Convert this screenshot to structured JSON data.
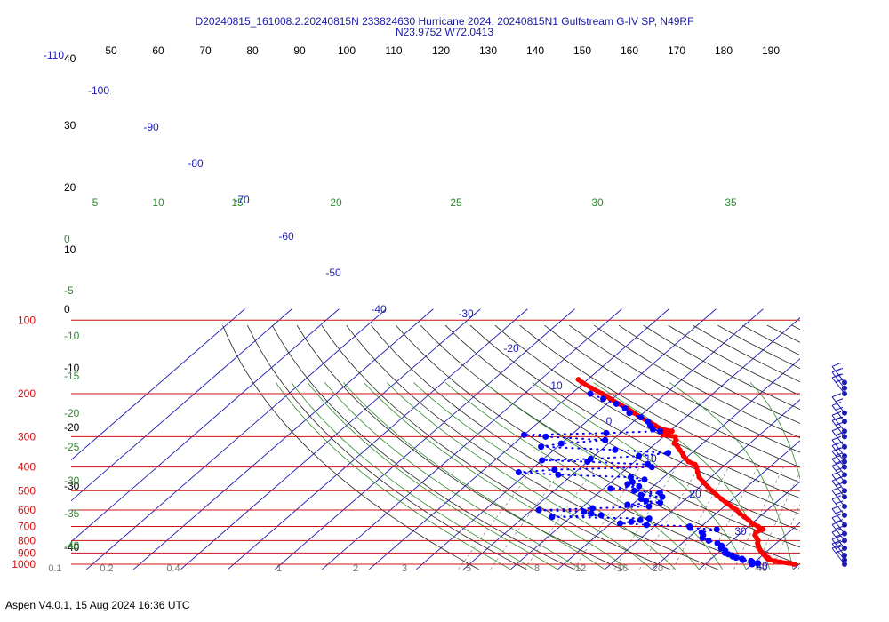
{
  "title": {
    "line1": "D20240815_161008.2.20240815N 233824630 Hurricane 2024, 20240815N1 Gulfstream G-IV SP, N49RF",
    "line2": "N23.9752 W72.0413"
  },
  "footer": "Aspen V4.0.1, 15 Aug 2024  16:36 UTC",
  "colors": {
    "temperature": "#ff0000",
    "dewpoint": "#0000ff",
    "isobars": "#cc0000",
    "isotherms": "#00008b",
    "dry_adiabats": "#000000",
    "mixing_ratio": "#2e8b2e",
    "title": "#1a1aa8"
  },
  "chart_data": {
    "type": "skew-t",
    "pressure_axis": {
      "scale": "log",
      "range": [
        1000,
        100
      ],
      "labels": [
        "100",
        "200",
        "300",
        "400",
        "500",
        "600",
        "700",
        "800",
        "900",
        "1000"
      ]
    },
    "top_axis_labels": [
      "50",
      "60",
      "70",
      "80",
      "90",
      "100",
      "110",
      "120",
      "130",
      "140",
      "150",
      "160",
      "170",
      "180",
      "190"
    ],
    "isotherm_labels": [
      -110,
      -100,
      -90,
      -80,
      -70,
      -60,
      -50,
      -40,
      -30,
      -20,
      -10,
      0,
      10,
      20,
      30,
      40
    ],
    "left_labels": [
      "40",
      "30",
      "20",
      "10",
      "0",
      "-10",
      "-20",
      "-30",
      "-40"
    ],
    "mixing_ratio_top_labels": [
      "5",
      "10",
      "15",
      "20",
      "25",
      "30",
      "35"
    ],
    "mixing_ratio_left_labels": [
      "0",
      "-5",
      "-10",
      "-15",
      "-20",
      "-25",
      "-30",
      "-35",
      "-40"
    ],
    "mixing_ratio_bottom_labels": [
      "0.1",
      "0.2",
      "0.4",
      "1",
      "2",
      "3",
      "5",
      "8",
      "12",
      "16",
      "20",
      "40"
    ],
    "temperature": {
      "pressure": [
        1000,
        990,
        980,
        970,
        960,
        950,
        940,
        930,
        920,
        910,
        900,
        880,
        860,
        840,
        820,
        800,
        780,
        760,
        740,
        720,
        700,
        680,
        660,
        640,
        620,
        600,
        580,
        560,
        540,
        520,
        500,
        480,
        460,
        440,
        420,
        400,
        390,
        380,
        370,
        360,
        350,
        340,
        330,
        320,
        310,
        300,
        295,
        290,
        285,
        280,
        270,
        260,
        250,
        240,
        230,
        220,
        210,
        200,
        190,
        180,
        175
      ],
      "temp": [
        29.0,
        27.5,
        25.5,
        24.0,
        22.8,
        22.0,
        21.8,
        21.0,
        20.5,
        20.0,
        19.5,
        18.5,
        17.5,
        16.8,
        16.0,
        15.5,
        14.5,
        13.5,
        13.0,
        13.8,
        12.0,
        10.0,
        8.5,
        6.8,
        5.0,
        3.5,
        1.5,
        -0.5,
        -2.5,
        -4.5,
        -6.5,
        -8.5,
        -10.5,
        -12.5,
        -14.0,
        -15.5,
        -16.5,
        -18.5,
        -19.8,
        -21.0,
        -22.0,
        -23.3,
        -24.5,
        -26.0,
        -26.5,
        -27.5,
        -30.5,
        -30.5,
        -29.5,
        -32.0,
        -34.5,
        -37.0,
        -39.5,
        -42.0,
        -44.5,
        -47.5,
        -50.5,
        -53.5,
        -57.0,
        -60.5,
        -62.0
      ]
    },
    "dewpoint": {
      "pressure": [
        1000,
        990,
        980,
        970,
        960,
        950,
        940,
        930,
        920,
        910,
        900,
        880,
        860,
        840,
        820,
        800,
        780,
        760,
        740,
        720,
        710,
        700,
        690,
        680,
        670,
        660,
        650,
        640,
        630,
        620,
        610,
        600,
        590,
        580,
        570,
        560,
        550,
        540,
        530,
        520,
        510,
        500,
        490,
        480,
        470,
        460,
        450,
        440,
        430,
        420,
        410,
        400,
        390,
        380,
        375,
        370,
        360,
        350,
        340,
        330,
        320,
        310,
        300,
        295,
        290,
        285,
        280,
        270,
        260,
        250,
        240,
        230,
        220,
        210,
        200
      ],
      "dewpoint": [
        20.0,
        21.0,
        19.5,
        19.0,
        17.0,
        16.5,
        15.0,
        14.0,
        13.5,
        12.5,
        11.5,
        11.0,
        9.5,
        9.0,
        7.5,
        5.0,
        3.0,
        2.5,
        1.5,
        4.0,
        -2.0,
        -2.5,
        -12.0,
        -18.0,
        -16.0,
        -14.5,
        -13.0,
        -34.0,
        -24.0,
        -26.5,
        -28.5,
        -38.5,
        -27.5,
        -16.0,
        -21.0,
        -14.5,
        -18.0,
        -19.5,
        -15.5,
        -20.5,
        -17.0,
        -23.0,
        -28.5,
        -23.0,
        -26.0,
        -25.5,
        -23.5,
        -27.0,
        -43.0,
        -52.0,
        -45.0,
        -25.0,
        -26.5,
        -40.0,
        -50.0,
        -40.0,
        -30.5,
        -25.0,
        -37.0,
        -53.5,
        -50.0,
        -41.5,
        -55.0,
        -60.0,
        -43.0,
        -32.0,
        -34.0,
        -35.5,
        -37.0,
        -39.5,
        -43.0,
        -45.0,
        -48.0,
        -52.0,
        -56.0
      ]
    },
    "wind_barb_pressures": [
      180,
      190,
      200,
      240,
      260,
      285,
      300,
      330,
      360,
      380,
      400,
      430,
      460,
      500,
      530,
      580,
      630,
      690,
      750,
      800,
      860,
      920,
      960,
      1000
    ]
  }
}
